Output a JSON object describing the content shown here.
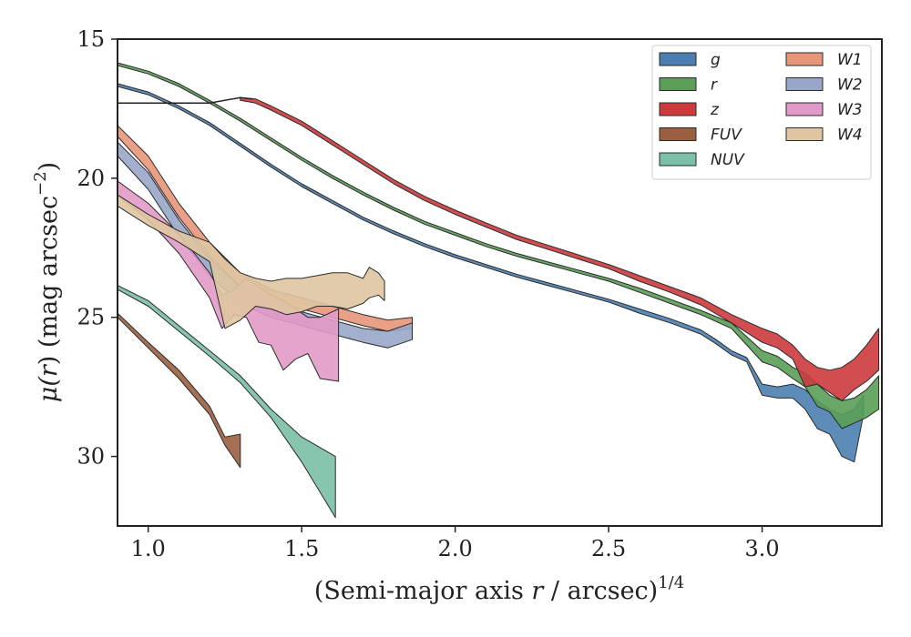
{
  "chart_data": {
    "type": "area",
    "xlabel": "(Semi-major axis r / arcsec)",
    "xlabel_parts": {
      "pre": "(Semi-major axis ",
      "var": "r",
      "post": " / arcsec)",
      "sup": "1/4"
    },
    "ylabel": "μ(r) (mag arcsec⁻²)",
    "ylabel_parts": {
      "mu": "μ(",
      "var": "r",
      "mid": ") (mag arcsec",
      "sup": "−2",
      "end": ")"
    },
    "xlim": [
      0.9,
      3.39
    ],
    "ylim": [
      32.5,
      15.0
    ],
    "y_inverted": true,
    "xticks": [
      1.0,
      1.5,
      2.0,
      2.5,
      3.0
    ],
    "xtick_labels": [
      "1.0",
      "1.5",
      "2.0",
      "2.5",
      "3.0"
    ],
    "yticks": [
      15,
      20,
      25,
      30
    ],
    "ytick_labels": [
      "15",
      "20",
      "25",
      "30"
    ],
    "grid": false,
    "legend": {
      "placement": "top-right",
      "columns": 2
    },
    "reference_line": {
      "color": "#222222",
      "points": [
        [
          0.9,
          17.3
        ],
        [
          1.2,
          17.3
        ],
        [
          1.3,
          17.1
        ],
        [
          1.34,
          17.15
        ]
      ]
    },
    "series": [
      {
        "name": "g",
        "color": "#4c7fb0",
        "points": [
          [
            0.9,
            16.6,
            16.7
          ],
          [
            1.0,
            16.9,
            17.0
          ],
          [
            1.1,
            17.4,
            17.5
          ],
          [
            1.2,
            18.0,
            18.1
          ],
          [
            1.3,
            18.75,
            18.85
          ],
          [
            1.4,
            19.5,
            19.6
          ],
          [
            1.5,
            20.2,
            20.3
          ],
          [
            1.6,
            20.8,
            20.9
          ],
          [
            1.7,
            21.4,
            21.5
          ],
          [
            1.8,
            21.9,
            22.0
          ],
          [
            1.9,
            22.35,
            22.45
          ],
          [
            2.0,
            22.75,
            22.85
          ],
          [
            2.1,
            23.1,
            23.2
          ],
          [
            2.2,
            23.45,
            23.55
          ],
          [
            2.3,
            23.75,
            23.85
          ],
          [
            2.4,
            24.05,
            24.15
          ],
          [
            2.5,
            24.35,
            24.45
          ],
          [
            2.6,
            24.7,
            24.85
          ],
          [
            2.7,
            25.05,
            25.2
          ],
          [
            2.8,
            25.45,
            25.6
          ],
          [
            2.85,
            25.8,
            25.95
          ],
          [
            2.9,
            26.2,
            26.35
          ],
          [
            2.95,
            26.45,
            26.6
          ],
          [
            3.0,
            27.4,
            27.8
          ],
          [
            3.05,
            27.5,
            27.9
          ],
          [
            3.1,
            27.4,
            27.9
          ],
          [
            3.14,
            27.6,
            28.3
          ],
          [
            3.18,
            28.0,
            29.0
          ],
          [
            3.22,
            28.3,
            29.2
          ],
          [
            3.26,
            28.5,
            30.0
          ],
          [
            3.3,
            28.3,
            30.2
          ],
          [
            3.33,
            27.8,
            28.5
          ]
        ]
      },
      {
        "name": "r",
        "color": "#5a9e57",
        "points": [
          [
            0.9,
            15.85,
            15.95
          ],
          [
            1.0,
            16.15,
            16.25
          ],
          [
            1.1,
            16.6,
            16.7
          ],
          [
            1.2,
            17.2,
            17.3
          ],
          [
            1.3,
            17.85,
            17.95
          ],
          [
            1.4,
            18.55,
            18.65
          ],
          [
            1.5,
            19.25,
            19.35
          ],
          [
            1.6,
            19.9,
            20.0
          ],
          [
            1.7,
            20.5,
            20.6
          ],
          [
            1.8,
            21.05,
            21.15
          ],
          [
            1.9,
            21.55,
            21.65
          ],
          [
            2.0,
            21.95,
            22.05
          ],
          [
            2.1,
            22.35,
            22.45
          ],
          [
            2.2,
            22.7,
            22.8
          ],
          [
            2.3,
            23.0,
            23.1
          ],
          [
            2.4,
            23.3,
            23.4
          ],
          [
            2.5,
            23.6,
            23.7
          ],
          [
            2.6,
            23.95,
            24.1
          ],
          [
            2.7,
            24.35,
            24.5
          ],
          [
            2.8,
            24.75,
            24.9
          ],
          [
            2.9,
            25.2,
            25.4
          ],
          [
            3.0,
            26.2,
            26.6
          ],
          [
            3.05,
            26.4,
            26.8
          ],
          [
            3.1,
            26.8,
            27.2
          ],
          [
            3.14,
            27.0,
            27.5
          ],
          [
            3.18,
            27.4,
            28.2
          ],
          [
            3.22,
            27.8,
            28.4
          ],
          [
            3.26,
            28.0,
            29.0
          ],
          [
            3.3,
            27.9,
            28.8
          ],
          [
            3.34,
            27.6,
            28.6
          ],
          [
            3.38,
            27.1,
            28.3
          ]
        ]
      },
      {
        "name": "z",
        "color": "#cc3a3d",
        "points": [
          [
            1.3,
            17.1,
            17.2
          ],
          [
            1.35,
            17.15,
            17.3
          ],
          [
            1.4,
            17.4,
            17.55
          ],
          [
            1.5,
            17.95,
            18.1
          ],
          [
            1.6,
            18.65,
            18.8
          ],
          [
            1.7,
            19.35,
            19.5
          ],
          [
            1.8,
            20.05,
            20.2
          ],
          [
            1.9,
            20.65,
            20.8
          ],
          [
            2.0,
            21.15,
            21.3
          ],
          [
            2.1,
            21.6,
            21.75
          ],
          [
            2.2,
            22.05,
            22.2
          ],
          [
            2.3,
            22.4,
            22.55
          ],
          [
            2.4,
            22.75,
            22.9
          ],
          [
            2.5,
            23.1,
            23.25
          ],
          [
            2.6,
            23.5,
            23.7
          ],
          [
            2.7,
            23.9,
            24.1
          ],
          [
            2.8,
            24.3,
            24.55
          ],
          [
            2.9,
            24.9,
            25.2
          ],
          [
            3.0,
            25.4,
            25.9
          ],
          [
            3.05,
            25.6,
            26.1
          ],
          [
            3.1,
            26.0,
            26.5
          ],
          [
            3.14,
            26.5,
            27.5
          ],
          [
            3.18,
            26.8,
            27.4
          ],
          [
            3.22,
            26.9,
            27.7
          ],
          [
            3.26,
            26.8,
            28.0
          ],
          [
            3.3,
            26.5,
            27.6
          ],
          [
            3.34,
            26.0,
            27.3
          ],
          [
            3.38,
            25.4,
            26.9
          ]
        ]
      },
      {
        "name": "FUV",
        "color": "#9a5f3f",
        "points": [
          [
            0.9,
            24.85,
            25.0
          ],
          [
            1.0,
            25.9,
            26.1
          ],
          [
            1.1,
            26.9,
            27.2
          ],
          [
            1.2,
            28.2,
            28.5
          ],
          [
            1.25,
            29.3,
            29.6
          ],
          [
            1.3,
            29.2,
            30.4
          ]
        ]
      },
      {
        "name": "NUV",
        "color": "#7bbfa6",
        "points": [
          [
            0.9,
            23.85,
            24.0
          ],
          [
            1.0,
            24.4,
            24.6
          ],
          [
            1.1,
            25.3,
            25.5
          ],
          [
            1.2,
            26.2,
            26.4
          ],
          [
            1.3,
            27.1,
            27.35
          ],
          [
            1.4,
            28.3,
            28.6
          ],
          [
            1.5,
            29.3,
            30.2
          ],
          [
            1.61,
            30.0,
            32.2
          ]
        ]
      },
      {
        "name": "W1",
        "color": "#e8967a",
        "points": [
          [
            0.9,
            18.1,
            18.5
          ],
          [
            1.0,
            19.2,
            19.7
          ],
          [
            1.1,
            20.9,
            21.4
          ],
          [
            1.2,
            22.3,
            22.8
          ],
          [
            1.3,
            23.4,
            23.9
          ],
          [
            1.4,
            24.0,
            24.5
          ],
          [
            1.5,
            24.3,
            24.7
          ],
          [
            1.6,
            24.6,
            25.0
          ],
          [
            1.7,
            24.9,
            25.3
          ],
          [
            1.78,
            25.1,
            25.5
          ],
          [
            1.86,
            25.0,
            25.4
          ]
        ]
      },
      {
        "name": "W2",
        "color": "#98a7c9",
        "points": [
          [
            0.9,
            18.7,
            19.2
          ],
          [
            1.0,
            19.8,
            20.4
          ],
          [
            1.1,
            21.5,
            22.1
          ],
          [
            1.2,
            22.9,
            23.5
          ],
          [
            1.3,
            23.9,
            24.5
          ],
          [
            1.4,
            24.4,
            25.0
          ],
          [
            1.5,
            24.8,
            25.3
          ],
          [
            1.6,
            25.1,
            25.6
          ],
          [
            1.7,
            25.4,
            25.9
          ],
          [
            1.78,
            25.5,
            26.1
          ],
          [
            1.86,
            25.2,
            25.8
          ]
        ]
      },
      {
        "name": "W3",
        "color": "#e29ac7",
        "points": [
          [
            0.9,
            20.1,
            20.6
          ],
          [
            1.0,
            20.9,
            21.5
          ],
          [
            1.1,
            22.0,
            22.7
          ],
          [
            1.2,
            23.4,
            24.3
          ],
          [
            1.24,
            24.2,
            25.4
          ],
          [
            1.28,
            24.0,
            24.9
          ],
          [
            1.32,
            23.6,
            25.0
          ],
          [
            1.36,
            23.9,
            25.9
          ],
          [
            1.4,
            24.2,
            26.0
          ],
          [
            1.44,
            24.4,
            26.9
          ],
          [
            1.48,
            24.7,
            26.5
          ],
          [
            1.52,
            25.0,
            26.3
          ],
          [
            1.56,
            25.0,
            27.2
          ],
          [
            1.62,
            24.7,
            27.3
          ]
        ]
      },
      {
        "name": "W4",
        "color": "#dfc5a1",
        "points": [
          [
            0.9,
            20.6,
            21.0
          ],
          [
            1.0,
            21.3,
            21.7
          ],
          [
            1.1,
            21.9,
            22.3
          ],
          [
            1.2,
            22.3,
            23.0
          ],
          [
            1.25,
            22.9,
            25.4
          ],
          [
            1.3,
            23.4,
            25.1
          ],
          [
            1.35,
            23.6,
            24.6
          ],
          [
            1.4,
            23.7,
            24.7
          ],
          [
            1.45,
            23.6,
            24.9
          ],
          [
            1.5,
            23.6,
            24.8
          ],
          [
            1.55,
            23.5,
            24.6
          ],
          [
            1.6,
            23.4,
            24.6
          ],
          [
            1.65,
            23.4,
            24.7
          ],
          [
            1.7,
            23.6,
            24.5
          ],
          [
            1.72,
            23.2,
            24.3
          ],
          [
            1.75,
            23.4,
            24.2
          ],
          [
            1.77,
            23.7,
            24.4
          ]
        ]
      }
    ]
  }
}
